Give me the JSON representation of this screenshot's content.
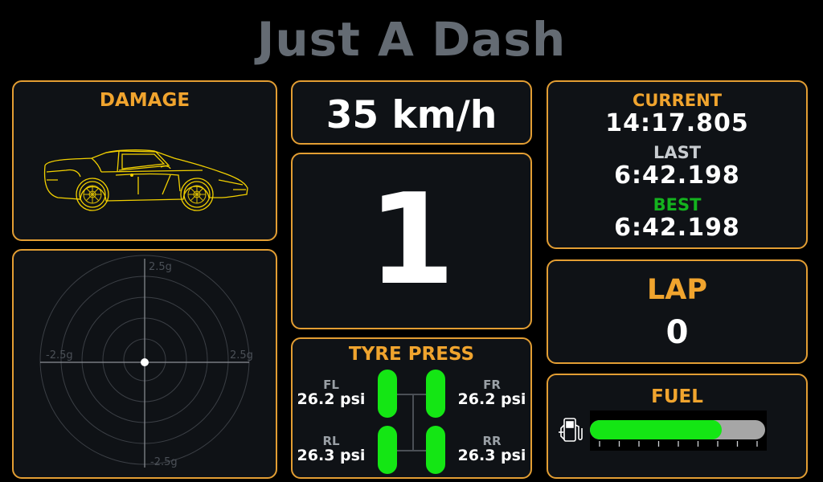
{
  "title": "Just A Dash",
  "damage": {
    "label": "DAMAGE"
  },
  "gforce": {
    "max_label": "2.5g",
    "min_label": "-2.5g",
    "lat": 0,
    "lon": 0
  },
  "speed": {
    "value": "35 km/h"
  },
  "gear": {
    "value": "1"
  },
  "tyres": {
    "label": "TYRE PRESS",
    "fl": {
      "label": "FL",
      "value": "26.2 psi"
    },
    "fr": {
      "label": "FR",
      "value": "26.2 psi"
    },
    "rl": {
      "label": "RL",
      "value": "26.3 psi"
    },
    "rr": {
      "label": "RR",
      "value": "26.3 psi"
    }
  },
  "laptimes": {
    "current_label": "CURRENT",
    "current": "14:17.805",
    "last_label": "LAST",
    "last": "6:42.198",
    "best_label": "BEST",
    "best": "6:42.198"
  },
  "lap": {
    "label": "LAP",
    "value": "0"
  },
  "fuel": {
    "label": "FUEL",
    "level": 0.75,
    "icon": "fuel-pump-icon"
  },
  "colors": {
    "accent": "#f0a42e",
    "best": "#14b31e",
    "tyre_ok": "#14e614",
    "car": "#f2d000",
    "title": "#646b73"
  }
}
